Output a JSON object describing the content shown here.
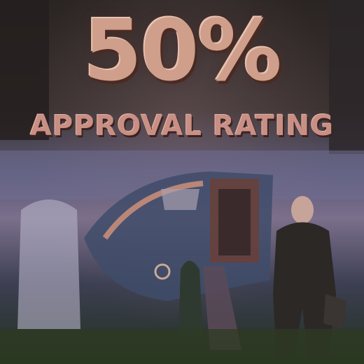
{
  "poster": {
    "headline": "50%",
    "subline": "APPROVAL RATING"
  },
  "palette": {
    "text": "#cf9f8c",
    "sky": "#7b6f8c",
    "dark": "#2a2422",
    "ground": "#24301f"
  }
}
